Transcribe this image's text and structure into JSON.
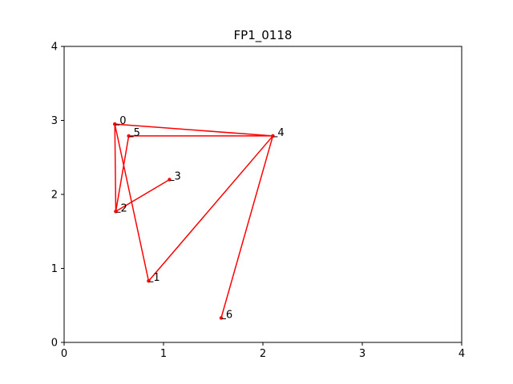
{
  "chart_data": {
    "type": "line",
    "title": "FP1_0118",
    "xlabel": "",
    "ylabel": "",
    "xlim": [
      0,
      4
    ],
    "ylim": [
      0,
      4
    ],
    "xticks": [
      0,
      1,
      2,
      3,
      4
    ],
    "yticks": [
      0,
      1,
      2,
      3,
      4
    ],
    "grid": false,
    "series": [
      {
        "color": "#ff0000",
        "points": [
          {
            "label": "0",
            "x": 0.51,
            "y": 2.95
          },
          {
            "label": "4",
            "x": 2.1,
            "y": 2.79
          },
          {
            "label": "1",
            "x": 0.85,
            "y": 0.83
          },
          {
            "label": "0",
            "x": 0.51,
            "y": 2.95
          },
          {
            "label": "2",
            "x": 0.52,
            "y": 1.77
          },
          {
            "label": "3",
            "x": 1.06,
            "y": 2.2
          },
          {
            "label": "2",
            "x": 0.52,
            "y": 1.77
          },
          {
            "label": "5",
            "x": 0.65,
            "y": 2.79
          },
          {
            "label": "4",
            "x": 2.1,
            "y": 2.79
          },
          {
            "label": "6",
            "x": 1.58,
            "y": 0.33
          }
        ]
      }
    ]
  }
}
